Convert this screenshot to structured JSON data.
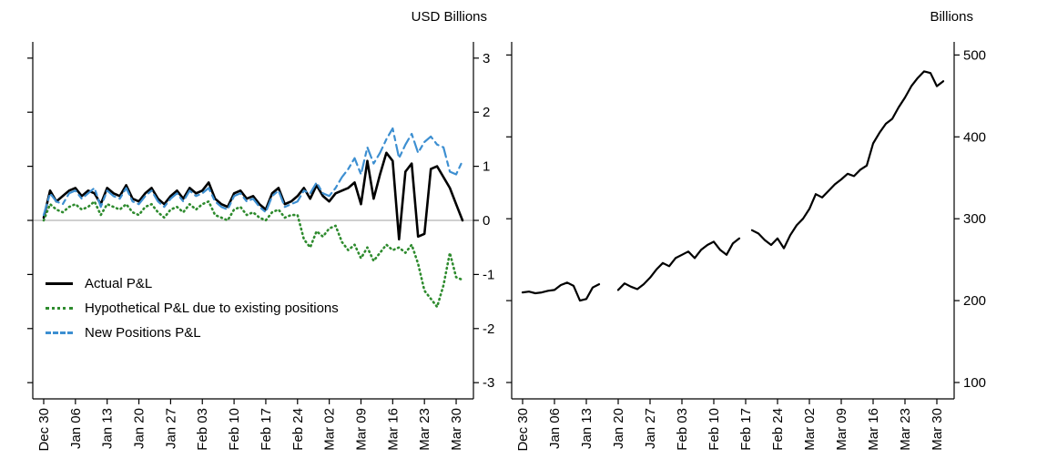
{
  "chart_data": [
    {
      "type": "line",
      "title": "USD Billions",
      "x_labels": [
        "Dec 30",
        "Jan 06",
        "Jan 13",
        "Jan 20",
        "Jan 27",
        "Feb 03",
        "Feb 10",
        "Feb 17",
        "Feb 24",
        "Mar 02",
        "Mar 09",
        "Mar 16",
        "Mar 23",
        "Mar 30"
      ],
      "label_step": 5,
      "ylim": [
        -3.3,
        3.3
      ],
      "yticks": [
        -3,
        -2,
        -1,
        0,
        1,
        2,
        3
      ],
      "zero_line": true,
      "zero_line_color": "#b3b3b3",
      "legend_position": "bottom-left",
      "series": [
        {
          "name": "Actual P&L",
          "color": "#000000",
          "style": "solid",
          "width": 2.6,
          "values": [
            0.05,
            0.55,
            0.35,
            0.45,
            0.55,
            0.6,
            0.45,
            0.55,
            0.5,
            0.3,
            0.6,
            0.5,
            0.45,
            0.65,
            0.4,
            0.35,
            0.5,
            0.6,
            0.4,
            0.3,
            0.45,
            0.55,
            0.4,
            0.6,
            0.5,
            0.55,
            0.7,
            0.4,
            0.3,
            0.25,
            0.5,
            0.55,
            0.4,
            0.45,
            0.3,
            0.2,
            0.5,
            0.6,
            0.3,
            0.35,
            0.45,
            0.6,
            0.4,
            0.65,
            0.45,
            0.35,
            0.5,
            0.55,
            0.6,
            0.7,
            0.3,
            1.1,
            0.4,
            0.85,
            1.25,
            1.1,
            -0.35,
            0.9,
            1.05,
            -0.3,
            -0.25,
            0.95,
            1.0,
            0.8,
            0.6,
            0.3,
            0.0
          ]
        },
        {
          "name": "Hypothetical P&L due to existing positions",
          "color": "#2e8b2e",
          "style": "dotted",
          "width": 2.6,
          "values": [
            0.0,
            0.3,
            0.2,
            0.15,
            0.25,
            0.3,
            0.2,
            0.25,
            0.35,
            0.1,
            0.3,
            0.25,
            0.2,
            0.3,
            0.15,
            0.1,
            0.25,
            0.3,
            0.15,
            0.05,
            0.2,
            0.25,
            0.15,
            0.3,
            0.2,
            0.3,
            0.35,
            0.1,
            0.05,
            0.0,
            0.2,
            0.25,
            0.1,
            0.15,
            0.05,
            0.0,
            0.15,
            0.2,
            0.05,
            0.1,
            0.1,
            -0.35,
            -0.5,
            -0.2,
            -0.3,
            -0.15,
            -0.1,
            -0.4,
            -0.55,
            -0.45,
            -0.7,
            -0.5,
            -0.75,
            -0.6,
            -0.45,
            -0.55,
            -0.5,
            -0.6,
            -0.45,
            -0.8,
            -1.3,
            -1.45,
            -1.6,
            -1.2,
            -0.6,
            -1.05,
            -1.1
          ]
        },
        {
          "name": "New Positions P&L",
          "color": "#3d8fd1",
          "style": "dashdot",
          "width": 2.2,
          "values": [
            0.1,
            0.5,
            0.35,
            0.3,
            0.5,
            0.55,
            0.4,
            0.5,
            0.6,
            0.25,
            0.55,
            0.45,
            0.4,
            0.6,
            0.35,
            0.3,
            0.45,
            0.55,
            0.35,
            0.25,
            0.4,
            0.5,
            0.35,
            0.55,
            0.45,
            0.5,
            0.6,
            0.35,
            0.25,
            0.2,
            0.45,
            0.5,
            0.35,
            0.4,
            0.25,
            0.15,
            0.45,
            0.55,
            0.25,
            0.3,
            0.35,
            0.55,
            0.5,
            0.7,
            0.5,
            0.45,
            0.6,
            0.8,
            0.95,
            1.15,
            0.85,
            1.35,
            1.05,
            1.25,
            1.5,
            1.7,
            1.15,
            1.4,
            1.6,
            1.25,
            1.45,
            1.55,
            1.4,
            1.35,
            0.9,
            0.85,
            1.1
          ]
        }
      ]
    },
    {
      "type": "line",
      "title": "Billions",
      "x_labels": [
        "Dec 30",
        "Jan 06",
        "Jan 13",
        "Jan 20",
        "Jan 27",
        "Feb 03",
        "Feb 10",
        "Feb 17",
        "Feb 24",
        "Mar 02",
        "Mar 09",
        "Mar 16",
        "Mar 23",
        "Mar 30"
      ],
      "label_step": 5,
      "ylim": [
        80,
        516
      ],
      "yticks": [
        100,
        200,
        300,
        400,
        500
      ],
      "zero_line": false,
      "series": [
        {
          "name": "",
          "color": "#000000",
          "style": "solid",
          "width": 2.2,
          "values": [
            210,
            211,
            209,
            210,
            212,
            213,
            219,
            222,
            218,
            200,
            202,
            216,
            220,
            null,
            null,
            213,
            221,
            217,
            214,
            220,
            228,
            238,
            246,
            242,
            252,
            256,
            260,
            252,
            262,
            268,
            272,
            262,
            256,
            270,
            276,
            null,
            286,
            282,
            274,
            268,
            276,
            264,
            280,
            292,
            300,
            312,
            330,
            326,
            334,
            342,
            348,
            355,
            352,
            360,
            365,
            392,
            405,
            416,
            422,
            436,
            448,
            462,
            472,
            480,
            478,
            462,
            468
          ]
        }
      ]
    }
  ]
}
